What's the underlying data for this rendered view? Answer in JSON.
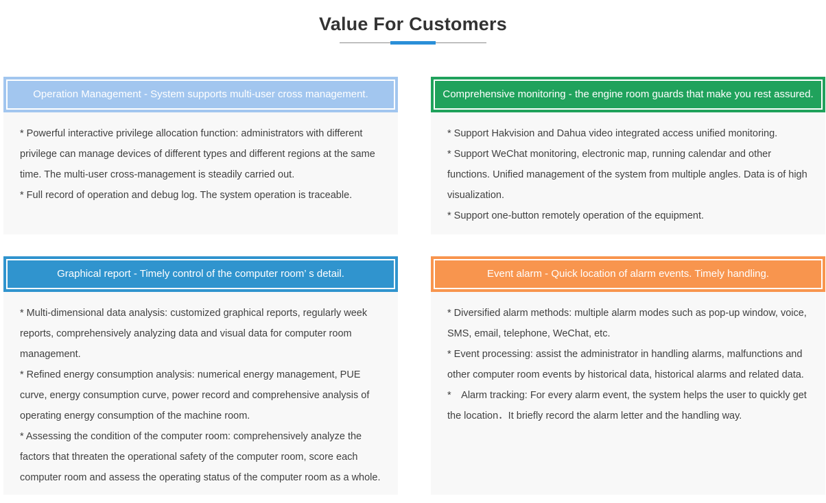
{
  "page": {
    "title": "Value For Customers",
    "underline_rule_color": "#8a8a8a",
    "underline_accent_color": "#2a8fd8",
    "body_background": "#f8f8f8",
    "body_text_color": "#404040"
  },
  "cards": [
    {
      "id": "operation-management",
      "header": "Operation Management - System supports multi-user cross management.",
      "header_color": "#a2c6ef",
      "bullets": [
        "* Powerful interactive privilege allocation function: administrators with different privilege can manage devices of different types and different regions at the same time. The multi-user cross-management is steadily carried out.",
        "* Full record of operation and debug log. The system operation is traceable."
      ]
    },
    {
      "id": "comprehensive-monitoring",
      "header": "Comprehensive monitoring - the engine room guards that make you rest assured.",
      "header_color": "#20a25c",
      "bullets": [
        "* Support Hakvision and Dahua video integrated access unified monitoring.",
        "* Support WeChat monitoring, electronic map, running calendar and other functions. Unified management of the system from multiple angles. Data is of high visualization.",
        "* Support one-button remotely operation of the equipment."
      ]
    },
    {
      "id": "graphical-report",
      "header": "Graphical report - Timely control of the computer room’ s detail.",
      "header_color": "#3094ce",
      "bullets": [
        "* Multi-dimensional data analysis: customized graphical reports, regularly week reports, comprehensively analyzing data and visual data for computer room management.",
        "* Refined energy consumption analysis: numerical energy management, PUE curve, energy consumption curve, power record and comprehensive analysis of operating energy consumption of the machine room.",
        "* Assessing the condition of the computer room: comprehensively analyze the factors that threaten the operational safety of the computer room, score each computer room and assess the operating status of the computer room as a whole."
      ]
    },
    {
      "id": "event-alarm",
      "header": "Event alarm - Quick location of alarm events. Timely handling.",
      "header_color": "#f8954e",
      "bullets": [
        "* Diversified alarm methods: multiple alarm modes such as pop-up window, voice, SMS, email, telephone, WeChat, etc.",
        "* Event processing: assist the administrator in handling alarms, malfunctions and other computer room events by historical data, historical alarms and related data.",
        "*　Alarm tracking: For every alarm event, the system helps the user to quickly get the location．It briefly record the alarm letter and the handling way."
      ]
    }
  ]
}
